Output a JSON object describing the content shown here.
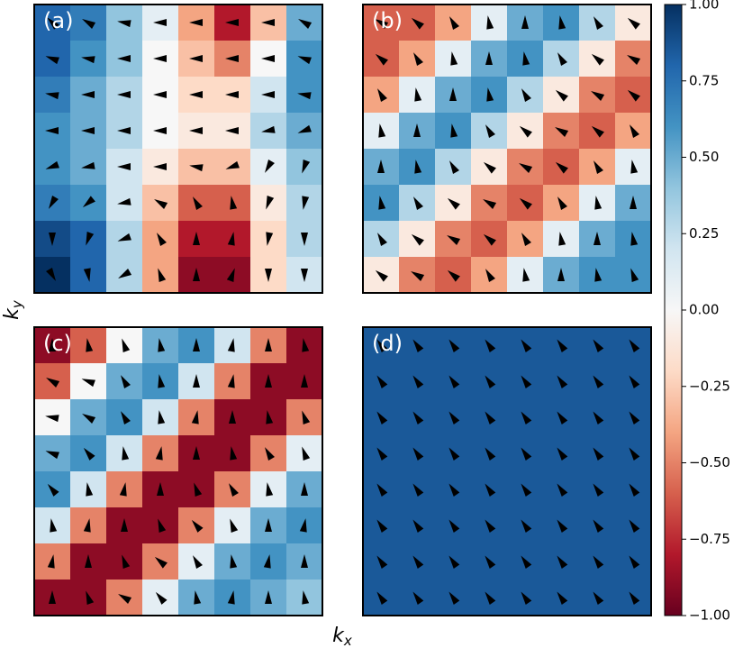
{
  "chart_data": {
    "type": "heatmap",
    "clim": [
      -1,
      1
    ],
    "colormap": [
      "#67001f",
      "#b2182b",
      "#d6604d",
      "#f4a582",
      "#fddbc7",
      "#f7f7f7",
      "#d1e5f0",
      "#92c5de",
      "#4393c3",
      "#2166ac",
      "#053061"
    ],
    "colorbar_ticks": [
      {
        "value": 1,
        "label": "1.00"
      },
      {
        "value": 0.75,
        "label": "0.75"
      },
      {
        "value": 0.5,
        "label": "0.50"
      },
      {
        "value": 0.25,
        "label": "0.25"
      },
      {
        "value": 0,
        "label": "0.00"
      },
      {
        "value": -0.25,
        "label": "−0.25"
      },
      {
        "value": -0.5,
        "label": "−0.50"
      },
      {
        "value": -0.75,
        "label": "−0.75"
      },
      {
        "value": -1,
        "label": "−1.00"
      }
    ],
    "xlabel": {
      "base": "k",
      "sub": "x"
    },
    "ylabel": {
      "base": "k",
      "sub": "y"
    },
    "panels": [
      {
        "label": "(a)",
        "z": [
          [
            0.8,
            0.7,
            0.4,
            0.1,
            -0.4,
            -0.8,
            -0.3,
            0.5
          ],
          [
            0.8,
            0.6,
            0.4,
            0.0,
            -0.3,
            -0.5,
            0.0,
            0.6
          ],
          [
            0.7,
            0.5,
            0.3,
            0.0,
            -0.2,
            -0.2,
            0.2,
            0.6
          ],
          [
            0.6,
            0.5,
            0.3,
            0.0,
            -0.1,
            -0.1,
            0.3,
            0.5
          ],
          [
            0.6,
            0.5,
            0.2,
            -0.1,
            -0.3,
            -0.3,
            0.1,
            0.4
          ],
          [
            0.7,
            0.6,
            0.2,
            -0.3,
            -0.6,
            -0.6,
            -0.1,
            0.3
          ],
          [
            0.9,
            0.8,
            0.3,
            -0.4,
            -0.8,
            -0.8,
            -0.2,
            0.3
          ],
          [
            1.0,
            0.8,
            0.3,
            -0.4,
            -0.9,
            -0.9,
            -0.2,
            0.2
          ]
        ],
        "arrow_angle": [
          [
            135,
            150,
            170,
            180,
            180,
            180,
            180,
            150
          ],
          [
            160,
            170,
            180,
            180,
            180,
            180,
            180,
            160
          ],
          [
            170,
            180,
            180,
            180,
            180,
            180,
            180,
            170
          ],
          [
            180,
            180,
            180,
            180,
            180,
            180,
            190,
            200
          ],
          [
            200,
            190,
            180,
            180,
            170,
            200,
            240,
            250
          ],
          [
            240,
            220,
            190,
            150,
            120,
            100,
            250,
            260
          ],
          [
            270,
            250,
            200,
            120,
            90,
            80,
            260,
            270
          ],
          [
            300,
            280,
            210,
            110,
            90,
            70,
            270,
            270
          ]
        ]
      },
      {
        "label": "(b)",
        "z": [
          [
            -0.6,
            -0.6,
            -0.4,
            0.1,
            0.5,
            0.6,
            0.3,
            -0.1
          ],
          [
            -0.6,
            -0.4,
            0.1,
            0.5,
            0.6,
            0.3,
            -0.1,
            -0.5
          ],
          [
            -0.4,
            0.1,
            0.5,
            0.6,
            0.3,
            -0.1,
            -0.5,
            -0.6
          ],
          [
            0.1,
            0.5,
            0.6,
            0.3,
            -0.1,
            -0.5,
            -0.6,
            -0.4
          ],
          [
            0.5,
            0.6,
            0.3,
            -0.1,
            -0.5,
            -0.6,
            -0.4,
            0.1
          ],
          [
            0.6,
            0.3,
            -0.1,
            -0.5,
            -0.6,
            -0.4,
            0.1,
            0.5
          ],
          [
            0.3,
            -0.1,
            -0.5,
            -0.6,
            -0.4,
            0.1,
            0.5,
            0.6
          ],
          [
            -0.1,
            -0.5,
            -0.6,
            -0.4,
            0.1,
            0.5,
            0.6,
            0.6
          ]
        ],
        "arrow_angle": [
          [
            150,
            140,
            120,
            100,
            90,
            100,
            120,
            140
          ],
          [
            140,
            120,
            100,
            90,
            100,
            120,
            140,
            150
          ],
          [
            120,
            100,
            90,
            100,
            120,
            140,
            150,
            140
          ],
          [
            100,
            90,
            100,
            120,
            140,
            150,
            140,
            120
          ],
          [
            90,
            100,
            120,
            140,
            150,
            140,
            120,
            100
          ],
          [
            100,
            120,
            140,
            150,
            140,
            120,
            100,
            90
          ],
          [
            120,
            140,
            150,
            140,
            120,
            100,
            90,
            100
          ],
          [
            140,
            150,
            140,
            120,
            100,
            90,
            100,
            110
          ]
        ]
      },
      {
        "label": "(c)",
        "z": [
          [
            -0.9,
            -0.6,
            0.0,
            0.5,
            0.6,
            0.2,
            -0.5,
            -0.9
          ],
          [
            -0.6,
            0.0,
            0.5,
            0.6,
            0.2,
            -0.5,
            -0.9,
            -0.9
          ],
          [
            0.0,
            0.5,
            0.6,
            0.2,
            -0.5,
            -0.9,
            -0.9,
            -0.5
          ],
          [
            0.5,
            0.6,
            0.2,
            -0.5,
            -0.9,
            -0.9,
            -0.5,
            0.1
          ],
          [
            0.6,
            0.2,
            -0.5,
            -0.9,
            -0.9,
            -0.5,
            0.1,
            0.5
          ],
          [
            0.2,
            -0.5,
            -0.9,
            -0.9,
            -0.5,
            0.1,
            0.5,
            0.6
          ],
          [
            -0.5,
            -0.9,
            -0.9,
            -0.5,
            0.1,
            0.5,
            0.6,
            0.5
          ],
          [
            -0.9,
            -0.9,
            -0.5,
            0.1,
            0.5,
            0.6,
            0.5,
            0.4
          ]
        ],
        "arrow_angle": [
          [
            90,
            100,
            110,
            100,
            90,
            80,
            90,
            100
          ],
          [
            150,
            160,
            120,
            100,
            90,
            80,
            90,
            90
          ],
          [
            170,
            150,
            120,
            100,
            80,
            90,
            100,
            110
          ],
          [
            160,
            130,
            100,
            80,
            90,
            100,
            120,
            110
          ],
          [
            130,
            100,
            80,
            90,
            110,
            120,
            100,
            90
          ],
          [
            100,
            80,
            90,
            110,
            130,
            110,
            90,
            80
          ],
          [
            80,
            90,
            110,
            140,
            120,
            100,
            80,
            90
          ],
          [
            90,
            110,
            150,
            130,
            100,
            80,
            90,
            100
          ]
        ]
      },
      {
        "label": "(d)",
        "z": [
          [
            0.85,
            0.85,
            0.85,
            0.85,
            0.85,
            0.85,
            0.85,
            0.85
          ],
          [
            0.85,
            0.85,
            0.85,
            0.85,
            0.85,
            0.85,
            0.85,
            0.85
          ],
          [
            0.85,
            0.85,
            0.85,
            0.85,
            0.85,
            0.85,
            0.85,
            0.85
          ],
          [
            0.85,
            0.85,
            0.85,
            0.85,
            0.85,
            0.85,
            0.85,
            0.85
          ],
          [
            0.85,
            0.85,
            0.85,
            0.85,
            0.85,
            0.85,
            0.85,
            0.85
          ],
          [
            0.85,
            0.85,
            0.85,
            0.85,
            0.85,
            0.85,
            0.85,
            0.85
          ],
          [
            0.85,
            0.85,
            0.85,
            0.85,
            0.85,
            0.85,
            0.85,
            0.85
          ],
          [
            0.85,
            0.85,
            0.85,
            0.85,
            0.85,
            0.85,
            0.85,
            0.85
          ]
        ],
        "arrow_angle": [
          [
            125,
            125,
            125,
            125,
            125,
            125,
            125,
            125
          ],
          [
            125,
            125,
            125,
            125,
            125,
            125,
            125,
            125
          ],
          [
            125,
            125,
            125,
            125,
            125,
            125,
            125,
            125
          ],
          [
            125,
            125,
            125,
            125,
            125,
            125,
            125,
            125
          ],
          [
            125,
            125,
            125,
            125,
            125,
            125,
            125,
            125
          ],
          [
            125,
            125,
            125,
            125,
            125,
            125,
            125,
            125
          ],
          [
            125,
            125,
            125,
            125,
            125,
            125,
            125,
            125
          ],
          [
            125,
            125,
            125,
            125,
            125,
            125,
            125,
            125
          ]
        ]
      }
    ]
  }
}
